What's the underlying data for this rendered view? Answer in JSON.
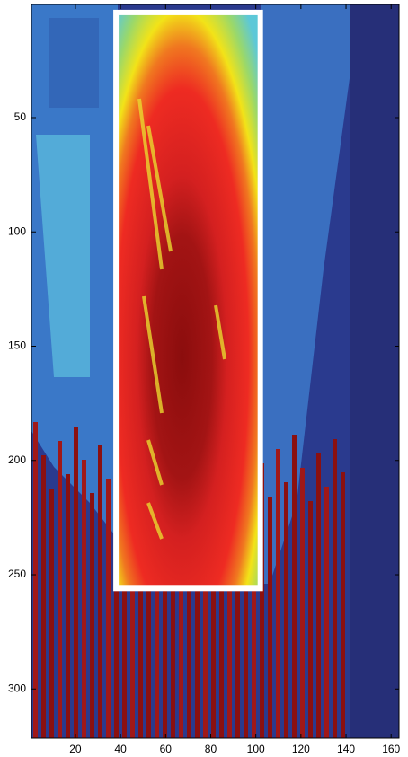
{
  "chart_data": {
    "type": "image",
    "xlim": [
      0.5,
      163.5
    ],
    "ylim": [
      0.5,
      321.5
    ],
    "y_reversed": true,
    "xticks": [
      20,
      40,
      60,
      80,
      100,
      120,
      140,
      160
    ],
    "yticks": [
      50,
      100,
      150,
      200,
      250,
      300
    ],
    "highlight_box": {
      "x": [
        38,
        102
      ],
      "y": [
        4,
        256
      ],
      "color": "#ffffff"
    }
  }
}
